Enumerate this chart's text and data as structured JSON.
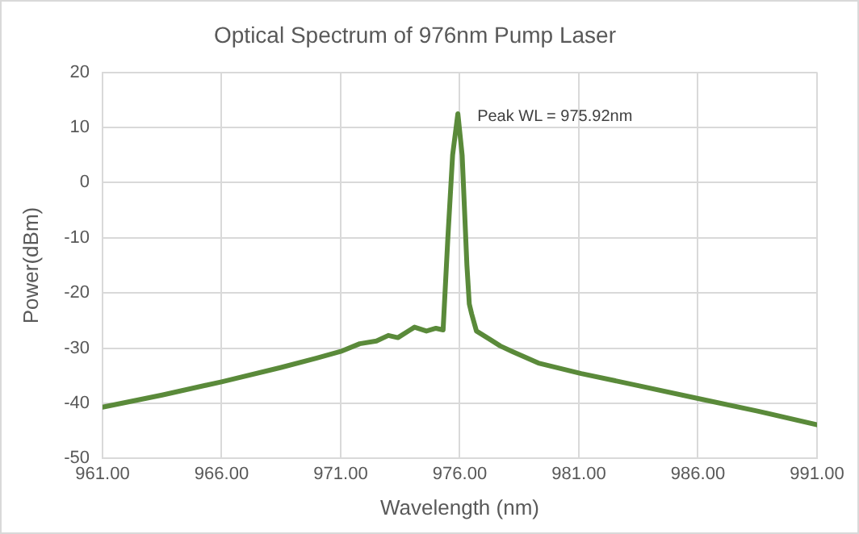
{
  "chart_data": {
    "type": "line",
    "title": "Optical Spectrum of 976nm Pump Laser",
    "xlabel": "Wavelength (nm)",
    "ylabel": "Power(dBm)",
    "xlim": [
      961,
      991
    ],
    "xticks": [
      {
        "value": 961,
        "label": "961.00"
      },
      {
        "value": 966,
        "label": "966.00"
      },
      {
        "value": 971,
        "label": "971.00"
      },
      {
        "value": 976,
        "label": "976.00"
      },
      {
        "value": 981,
        "label": "981.00"
      },
      {
        "value": 986,
        "label": "986.00"
      },
      {
        "value": 991,
        "label": "991.00"
      }
    ],
    "ylim": [
      -50,
      20
    ],
    "yticks": [
      -50,
      -40,
      -30,
      -20,
      -10,
      0,
      10,
      20
    ],
    "grid": true,
    "marker": "none",
    "line_style": "solid",
    "annotations": [
      {
        "text": "Peak WL = 975.92nm",
        "x": 975.92,
        "y": 12.5
      }
    ],
    "series": [
      {
        "color": "#5a8a3a",
        "x": [
          961,
          963.5,
          966,
          968.5,
          970,
          971,
          971.8,
          972.5,
          973,
          973.4,
          974.1,
          974.6,
          975,
          975.3,
          975.5,
          975.7,
          975.92,
          976.1,
          976.3,
          976.4,
          976.5,
          976.7,
          977.3,
          977.7,
          978.2,
          979.3,
          981.1,
          983.5,
          986.2,
          988.5,
          991
        ],
        "values": [
          -40.7,
          -38.5,
          -36.1,
          -33.5,
          -31.8,
          -30.6,
          -29.2,
          -28.7,
          -27.7,
          -28.1,
          -26.2,
          -26.9,
          -26.4,
          -26.7,
          -10,
          5,
          12.5,
          5,
          -15,
          -22,
          -23.8,
          -26.9,
          -28.5,
          -29.6,
          -30.6,
          -32.7,
          -34.6,
          -36.8,
          -39.3,
          -41.4,
          -43.9
        ]
      }
    ]
  }
}
